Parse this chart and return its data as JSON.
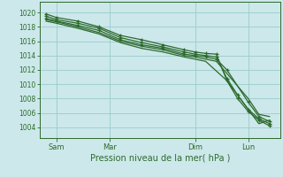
{
  "background_color": "#cce8ea",
  "grid_color": "#99cccc",
  "line_color": "#2d6a2d",
  "ylim": [
    1002.5,
    1021.5
  ],
  "yticks": [
    1004,
    1006,
    1008,
    1010,
    1012,
    1014,
    1016,
    1018,
    1020
  ],
  "xlabel": "Pression niveau de la mer( hPa )",
  "xtick_labels": [
    "Sam",
    "Mar",
    "Dim",
    "Lun"
  ],
  "xtick_positions": [
    0.5,
    3.0,
    7.0,
    9.5
  ],
  "xlim": [
    -0.3,
    11.0
  ],
  "series": [
    {
      "x": [
        0,
        0.5,
        1.5,
        2.5,
        3.5,
        4.5,
        5.5,
        6.5,
        7.0,
        7.5,
        8.0,
        8.5,
        9.0,
        9.5,
        10.0,
        10.5
      ],
      "y": [
        1019.8,
        1019.3,
        1018.8,
        1018.0,
        1016.8,
        1016.2,
        1015.5,
        1014.8,
        1014.5,
        1014.3,
        1014.2,
        1010.5,
        1008.0,
        1006.2,
        1005.0,
        1004.2
      ],
      "marker": true
    },
    {
      "x": [
        0,
        0.5,
        1.5,
        2.5,
        3.5,
        4.5,
        5.5,
        6.5,
        7.0,
        7.5,
        8.0,
        8.5,
        9.0,
        9.5,
        10.0,
        10.5
      ],
      "y": [
        1019.5,
        1019.0,
        1018.5,
        1017.8,
        1016.5,
        1015.8,
        1015.2,
        1014.5,
        1014.2,
        1014.0,
        1013.8,
        1010.8,
        1008.5,
        1006.5,
        1005.2,
        1004.5
      ],
      "marker": true
    },
    {
      "x": [
        0,
        0.5,
        1.5,
        2.5,
        3.5,
        4.5,
        5.5,
        6.5,
        7.0,
        7.5,
        8.0,
        8.5,
        9.5,
        10.0,
        10.5
      ],
      "y": [
        1019.2,
        1018.8,
        1018.2,
        1017.5,
        1016.2,
        1015.5,
        1015.0,
        1014.2,
        1014.0,
        1013.8,
        1013.5,
        1012.0,
        1007.5,
        1005.5,
        1004.8
      ],
      "marker": true
    },
    {
      "x": [
        0,
        0.5,
        1.5,
        2.5,
        3.5,
        4.5,
        5.5,
        6.5,
        7.0,
        7.5,
        8.0,
        8.5,
        9.5,
        10.0,
        10.5
      ],
      "y": [
        1019.0,
        1018.7,
        1018.0,
        1017.2,
        1016.0,
        1015.3,
        1014.8,
        1014.0,
        1013.8,
        1013.5,
        1013.2,
        1011.5,
        1008.0,
        1005.8,
        1005.5
      ],
      "marker": false
    },
    {
      "x": [
        0,
        0.5,
        1.5,
        2.5,
        3.5,
        4.5,
        5.5,
        6.5,
        7.0,
        7.5,
        8.5,
        9.5,
        10.0,
        10.5
      ],
      "y": [
        1018.8,
        1018.5,
        1017.8,
        1017.0,
        1015.8,
        1015.0,
        1014.5,
        1013.8,
        1013.5,
        1013.2,
        1010.5,
        1006.5,
        1004.5,
        1005.0
      ],
      "marker": false
    }
  ]
}
